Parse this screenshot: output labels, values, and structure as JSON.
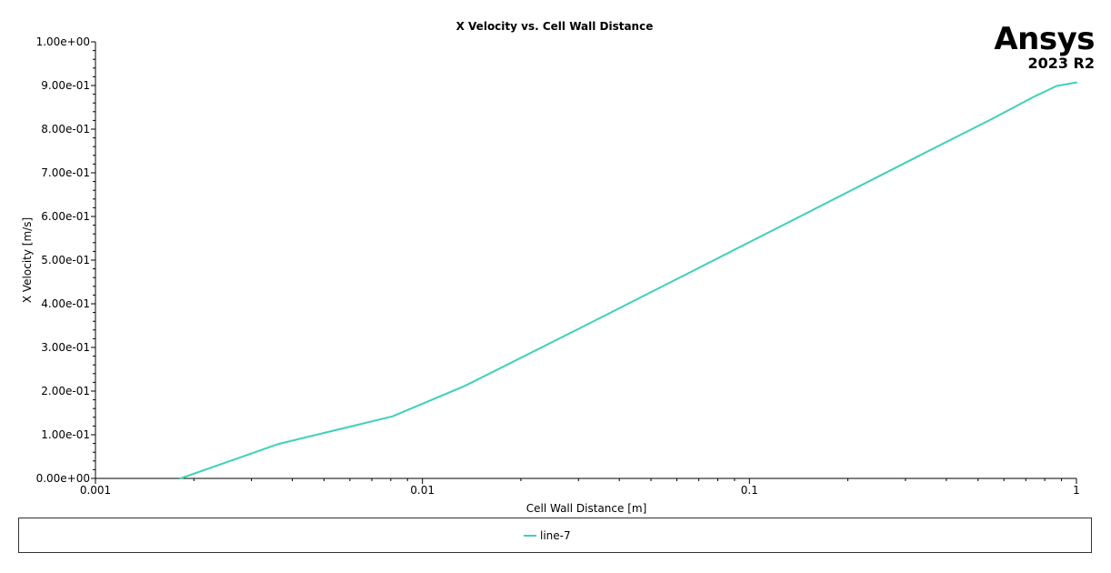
{
  "chart_data": {
    "type": "line",
    "title": "X Velocity vs. Cell Wall Distance",
    "xlabel": "Cell Wall Distance [m]",
    "ylabel": "X Velocity [m/s]",
    "x_scale": "log",
    "xlim": [
      0.001,
      1
    ],
    "ylim": [
      0,
      1
    ],
    "x_ticks": [
      0.001,
      0.01,
      0.1,
      1
    ],
    "x_tick_labels": [
      "0.001",
      "0.01",
      "0.1",
      "1"
    ],
    "y_ticks": [
      0,
      0.1,
      0.2,
      0.3,
      0.4,
      0.5,
      0.6,
      0.7,
      0.8,
      0.9,
      1.0
    ],
    "y_tick_labels": [
      "0.00e+00",
      "1.00e-01",
      "2.00e-01",
      "3.00e-01",
      "4.00e-01",
      "5.00e-01",
      "6.00e-01",
      "7.00e-01",
      "8.00e-01",
      "9.00e-01",
      "1.00e+00"
    ],
    "grid": false,
    "legend_position": "bottom",
    "series": [
      {
        "name": "line-7",
        "color": "#40d0b8",
        "x": [
          0.00182,
          0.00363,
          0.00809,
          0.0135,
          0.0301,
          0.067,
          0.149,
          0.332,
          0.55,
          0.74,
          0.87,
          1.0
        ],
        "y": [
          0.0,
          0.079,
          0.142,
          0.212,
          0.343,
          0.475,
          0.607,
          0.74,
          0.823,
          0.874,
          0.899,
          0.907
        ]
      }
    ]
  },
  "logo": {
    "name": "Ansys",
    "version": "2023 R2"
  }
}
